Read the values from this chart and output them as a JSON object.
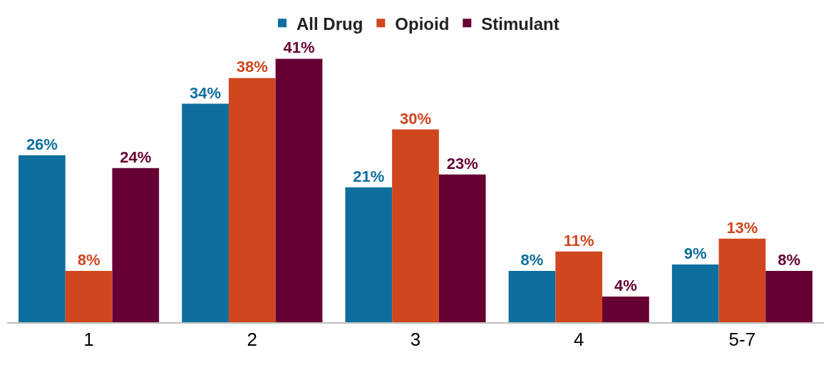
{
  "chart_data": {
    "type": "bar",
    "categories": [
      "1",
      "2",
      "3",
      "4",
      "5-7"
    ],
    "series": [
      {
        "name": "All Drug",
        "color": "#0e6f9e",
        "values": [
          26,
          34,
          21,
          8,
          9
        ],
        "value_labels": [
          "26%",
          "34%",
          "21%",
          "8%",
          "9%"
        ]
      },
      {
        "name": "Opioid",
        "color": "#d0461e",
        "values": [
          8,
          38,
          30,
          11,
          13
        ],
        "value_labels": [
          "8%",
          "38%",
          "30%",
          "11%",
          "13%"
        ]
      },
      {
        "name": "Stimulant",
        "color": "#660033",
        "values": [
          24,
          41,
          23,
          4,
          8
        ],
        "value_labels": [
          "24%",
          "41%",
          "23%",
          "4%",
          "8%"
        ]
      }
    ],
    "legend": "top",
    "grid": false
  }
}
